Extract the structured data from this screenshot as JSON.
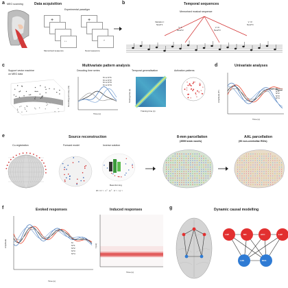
{
  "panel_letters": {
    "a": "a",
    "b": "b",
    "c": "c",
    "d": "d",
    "e": "e",
    "f": "f",
    "g": "g"
  },
  "panel_a": {
    "scan_label": "MEG scanning",
    "title": "Data acquisition",
    "paradigm_title": "Experimental paradigm",
    "memorised_label": "Memorised sequence",
    "novel_label": "Novel sequence",
    "listen_label": "Listen",
    "question_mark": "?"
  },
  "panel_b": {
    "title": "Temporal sequences",
    "memorised_label": "Memorised musical sequence",
    "variations": [
      "Variation I\nNewT1",
      "V. II\nNewT2",
      "V. III\nNewT3",
      "V. IV\nNewT4"
    ]
  },
  "panel_c": {
    "title": "Multivariate pattern analysis",
    "svm_label": "Support vector machine\non MEG data",
    "decoding_title": "Decoding time series",
    "temporal_title": "Temporal generalisation",
    "activation_title": "Activation patterns",
    "decoding_ylabel": "Decoding accuracy (%)",
    "decoding_xlabel": "Time (s)",
    "tg_ylabel": "Testing time (s)",
    "tg_xlabel": "Training time (s)",
    "legend": [
      "M vs NT1",
      "M vs NT2",
      "M vs NT3",
      "M vs NT4"
    ]
  },
  "panel_d": {
    "title": "Univariate analyses",
    "ylabel": "Amplitude (fT)",
    "xlabel": "Time (s)",
    "legend": [
      "M",
      "NT1",
      "NT2",
      "NT3",
      "NT4"
    ]
  },
  "panel_e": {
    "title": "Source reconstruction",
    "coreg_label": "Co-registration",
    "forward_label": "Forward model",
    "inverse_label": "Inverse solution",
    "beamforming_label": "Beamforming",
    "formula": "W = C⁻¹ · Lᵀ · (Lᵀ · C⁻¹ · L)⁻¹",
    "parc8_title": "8-mm parcellation",
    "parc8_sub": "(3559 brain voxels)",
    "aal_title": "AAL parcellation",
    "aal_sub": "(90 non-cerebellar ROIs)"
  },
  "panel_f": {
    "evoked_title": "Evoked responses",
    "induced_title": "Induced responses",
    "evoked_ylabel": "Amplitude",
    "evoked_xlabel": "Time (s)",
    "induced_ylabel": "f (Hz)",
    "induced_xlabel": "Time (s)",
    "legend": [
      "M",
      "NT1",
      "NT2",
      "NT3",
      "NT4"
    ]
  },
  "panel_g": {
    "title": "Dynamic causal modelling",
    "nodes": [
      "LHP",
      "MC",
      "ACC",
      "LHP",
      "LHS",
      "RHS"
    ]
  },
  "colors": {
    "M": "#e8452c",
    "NT1": "#222222",
    "NT2": "#3a6fb5",
    "NT3": "#7fa6d6",
    "NT4": "#9a9a9a",
    "red_node": "#e23030",
    "blue_node": "#2f7bd4",
    "brain": "#cfcfcf"
  }
}
